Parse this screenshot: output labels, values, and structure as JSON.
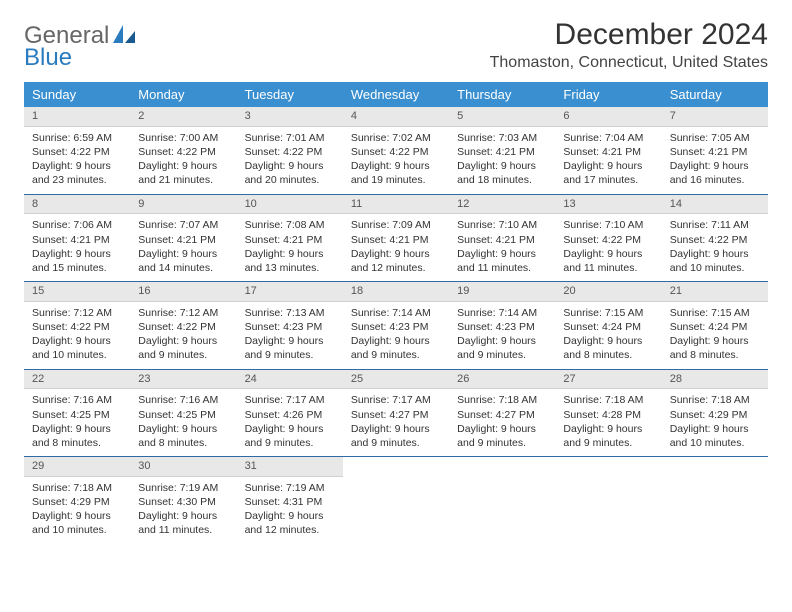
{
  "logo": {
    "text1": "General",
    "text2": "Blue"
  },
  "title": "December 2024",
  "location": "Thomaston, Connecticut, United States",
  "colors": {
    "header_bg": "#3a8fd0",
    "header_text": "#ffffff",
    "daynum_bg": "#e8e8e8",
    "week_border": "#2b6ca3",
    "logo_blue": "#2b7bbf",
    "text": "#333333"
  },
  "fonts": {
    "title_size": 30,
    "location_size": 16,
    "dayhead_size": 13,
    "cell_size": 10.5
  },
  "day_headers": [
    "Sunday",
    "Monday",
    "Tuesday",
    "Wednesday",
    "Thursday",
    "Friday",
    "Saturday"
  ],
  "weeks": [
    [
      {
        "n": "1",
        "sr": "Sunrise: 6:59 AM",
        "ss": "Sunset: 4:22 PM",
        "dl": "Daylight: 9 hours and 23 minutes."
      },
      {
        "n": "2",
        "sr": "Sunrise: 7:00 AM",
        "ss": "Sunset: 4:22 PM",
        "dl": "Daylight: 9 hours and 21 minutes."
      },
      {
        "n": "3",
        "sr": "Sunrise: 7:01 AM",
        "ss": "Sunset: 4:22 PM",
        "dl": "Daylight: 9 hours and 20 minutes."
      },
      {
        "n": "4",
        "sr": "Sunrise: 7:02 AM",
        "ss": "Sunset: 4:22 PM",
        "dl": "Daylight: 9 hours and 19 minutes."
      },
      {
        "n": "5",
        "sr": "Sunrise: 7:03 AM",
        "ss": "Sunset: 4:21 PM",
        "dl": "Daylight: 9 hours and 18 minutes."
      },
      {
        "n": "6",
        "sr": "Sunrise: 7:04 AM",
        "ss": "Sunset: 4:21 PM",
        "dl": "Daylight: 9 hours and 17 minutes."
      },
      {
        "n": "7",
        "sr": "Sunrise: 7:05 AM",
        "ss": "Sunset: 4:21 PM",
        "dl": "Daylight: 9 hours and 16 minutes."
      }
    ],
    [
      {
        "n": "8",
        "sr": "Sunrise: 7:06 AM",
        "ss": "Sunset: 4:21 PM",
        "dl": "Daylight: 9 hours and 15 minutes."
      },
      {
        "n": "9",
        "sr": "Sunrise: 7:07 AM",
        "ss": "Sunset: 4:21 PM",
        "dl": "Daylight: 9 hours and 14 minutes."
      },
      {
        "n": "10",
        "sr": "Sunrise: 7:08 AM",
        "ss": "Sunset: 4:21 PM",
        "dl": "Daylight: 9 hours and 13 minutes."
      },
      {
        "n": "11",
        "sr": "Sunrise: 7:09 AM",
        "ss": "Sunset: 4:21 PM",
        "dl": "Daylight: 9 hours and 12 minutes."
      },
      {
        "n": "12",
        "sr": "Sunrise: 7:10 AM",
        "ss": "Sunset: 4:21 PM",
        "dl": "Daylight: 9 hours and 11 minutes."
      },
      {
        "n": "13",
        "sr": "Sunrise: 7:10 AM",
        "ss": "Sunset: 4:22 PM",
        "dl": "Daylight: 9 hours and 11 minutes."
      },
      {
        "n": "14",
        "sr": "Sunrise: 7:11 AM",
        "ss": "Sunset: 4:22 PM",
        "dl": "Daylight: 9 hours and 10 minutes."
      }
    ],
    [
      {
        "n": "15",
        "sr": "Sunrise: 7:12 AM",
        "ss": "Sunset: 4:22 PM",
        "dl": "Daylight: 9 hours and 10 minutes."
      },
      {
        "n": "16",
        "sr": "Sunrise: 7:12 AM",
        "ss": "Sunset: 4:22 PM",
        "dl": "Daylight: 9 hours and 9 minutes."
      },
      {
        "n": "17",
        "sr": "Sunrise: 7:13 AM",
        "ss": "Sunset: 4:23 PM",
        "dl": "Daylight: 9 hours and 9 minutes."
      },
      {
        "n": "18",
        "sr": "Sunrise: 7:14 AM",
        "ss": "Sunset: 4:23 PM",
        "dl": "Daylight: 9 hours and 9 minutes."
      },
      {
        "n": "19",
        "sr": "Sunrise: 7:14 AM",
        "ss": "Sunset: 4:23 PM",
        "dl": "Daylight: 9 hours and 9 minutes."
      },
      {
        "n": "20",
        "sr": "Sunrise: 7:15 AM",
        "ss": "Sunset: 4:24 PM",
        "dl": "Daylight: 9 hours and 8 minutes."
      },
      {
        "n": "21",
        "sr": "Sunrise: 7:15 AM",
        "ss": "Sunset: 4:24 PM",
        "dl": "Daylight: 9 hours and 8 minutes."
      }
    ],
    [
      {
        "n": "22",
        "sr": "Sunrise: 7:16 AM",
        "ss": "Sunset: 4:25 PM",
        "dl": "Daylight: 9 hours and 8 minutes."
      },
      {
        "n": "23",
        "sr": "Sunrise: 7:16 AM",
        "ss": "Sunset: 4:25 PM",
        "dl": "Daylight: 9 hours and 8 minutes."
      },
      {
        "n": "24",
        "sr": "Sunrise: 7:17 AM",
        "ss": "Sunset: 4:26 PM",
        "dl": "Daylight: 9 hours and 9 minutes."
      },
      {
        "n": "25",
        "sr": "Sunrise: 7:17 AM",
        "ss": "Sunset: 4:27 PM",
        "dl": "Daylight: 9 hours and 9 minutes."
      },
      {
        "n": "26",
        "sr": "Sunrise: 7:18 AM",
        "ss": "Sunset: 4:27 PM",
        "dl": "Daylight: 9 hours and 9 minutes."
      },
      {
        "n": "27",
        "sr": "Sunrise: 7:18 AM",
        "ss": "Sunset: 4:28 PM",
        "dl": "Daylight: 9 hours and 9 minutes."
      },
      {
        "n": "28",
        "sr": "Sunrise: 7:18 AM",
        "ss": "Sunset: 4:29 PM",
        "dl": "Daylight: 9 hours and 10 minutes."
      }
    ],
    [
      {
        "n": "29",
        "sr": "Sunrise: 7:18 AM",
        "ss": "Sunset: 4:29 PM",
        "dl": "Daylight: 9 hours and 10 minutes."
      },
      {
        "n": "30",
        "sr": "Sunrise: 7:19 AM",
        "ss": "Sunset: 4:30 PM",
        "dl": "Daylight: 9 hours and 11 minutes."
      },
      {
        "n": "31",
        "sr": "Sunrise: 7:19 AM",
        "ss": "Sunset: 4:31 PM",
        "dl": "Daylight: 9 hours and 12 minutes."
      },
      null,
      null,
      null,
      null
    ]
  ]
}
